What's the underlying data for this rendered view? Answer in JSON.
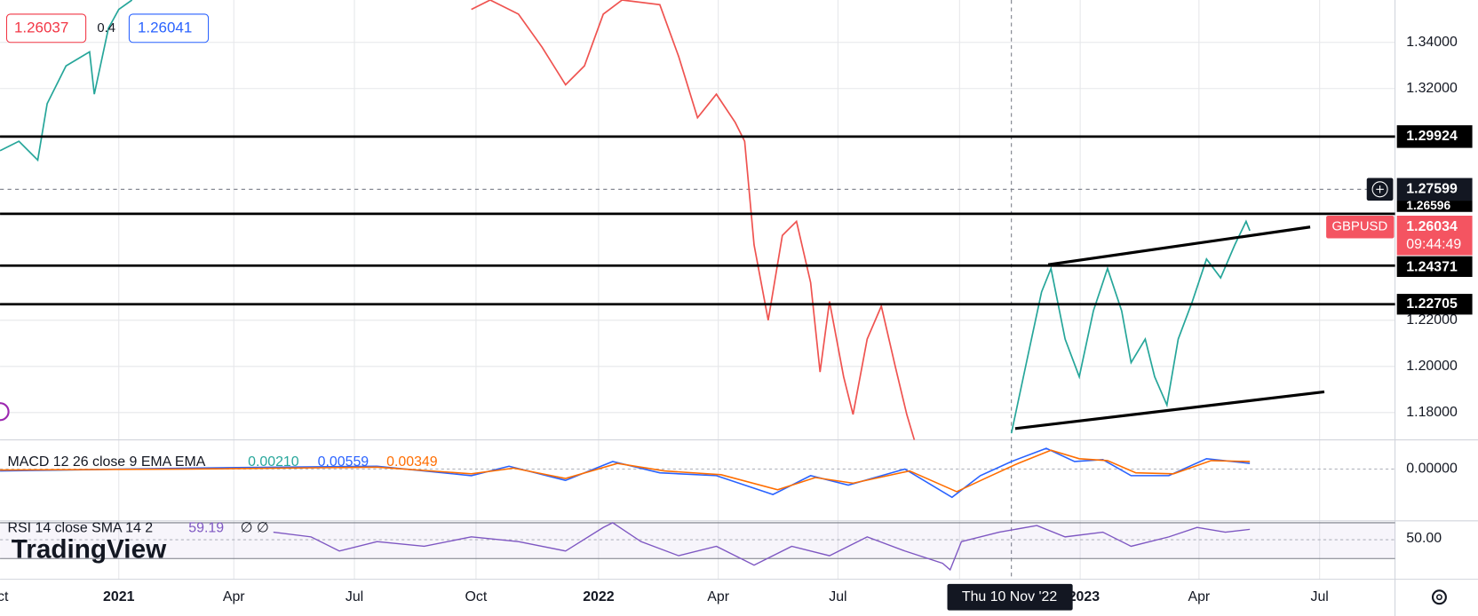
{
  "symbol": "GBPUSD",
  "header": {
    "bid": "1.26037",
    "spread": "0.4",
    "ask": "1.26041"
  },
  "price_axis": {
    "ticks": [
      "1.34000",
      "1.32000",
      "1.22000",
      "1.20000",
      "1.18000"
    ],
    "lines": [
      "1.29924",
      "1.27599",
      "1.26596",
      "1.24371",
      "1.22705"
    ],
    "last_price": "1.26034",
    "countdown": "09:44:49"
  },
  "time_axis": {
    "labels": [
      "ct",
      "2021",
      "Apr",
      "Jul",
      "Oct",
      "2022",
      "Apr",
      "Jul",
      "2023",
      "Apr",
      "Jul"
    ],
    "crosshair": "Thu 10 Nov '22"
  },
  "macd": {
    "title": "MACD 12 26 close 9 EMA EMA",
    "histogram": "0.00210",
    "macd": "0.00559",
    "signal": "0.00349",
    "axis": "0.00000"
  },
  "rsi": {
    "title": "RSI 14 close SMA 14 2",
    "value": "59.19",
    "extra": "∅ ∅",
    "axis": "50.00"
  },
  "logo": "TradingView"
}
